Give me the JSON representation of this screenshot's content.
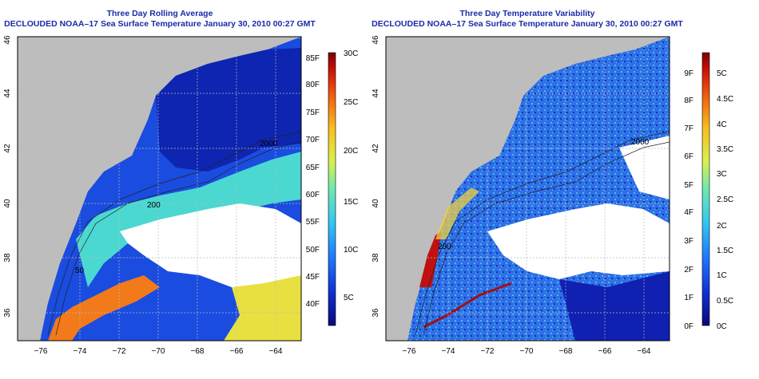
{
  "left_panel": {
    "title": "Three Day Rolling Average",
    "subtitle": "DECLOUDED NOAA–17 Sea Surface Temperature January 30, 2010 00:27 GMT",
    "x_ticks": [
      "−76",
      "−74",
      "−72",
      "−70",
      "−68",
      "−66",
      "−64"
    ],
    "y_ticks": [
      "36",
      "38",
      "40",
      "42",
      "44",
      "46"
    ],
    "contour_labels": [
      "2000",
      "200",
      "50"
    ],
    "colorbar": {
      "fahrenheit": [
        "40F",
        "45F",
        "50F",
        "55F",
        "60F",
        "65F",
        "70F",
        "75F",
        "80F",
        "85F"
      ],
      "celsius": [
        "5C",
        "10C",
        "15C",
        "20C",
        "25C",
        "30C"
      ]
    }
  },
  "right_panel": {
    "title": "Three Day Temperature Variability",
    "subtitle": "DECLOUDED NOAA–17 Sea Surface Temperature January 30, 2010 00:27 GMT",
    "x_ticks": [
      "−76",
      "−74",
      "−72",
      "−70",
      "−68",
      "−66",
      "−64"
    ],
    "y_ticks": [
      "36",
      "38",
      "40",
      "42",
      "44",
      "46"
    ],
    "contour_labels": [
      "2000",
      "200"
    ],
    "colorbar": {
      "fahrenheit": [
        "0F",
        "1F",
        "2F",
        "3F",
        "4F",
        "5F",
        "6F",
        "7F",
        "8F",
        "9F"
      ],
      "celsius": [
        "0C",
        "0.5C",
        "1C",
        "1.5C",
        "2C",
        "2.5C",
        "3C",
        "3.5C",
        "4C",
        "4.5C",
        "5C"
      ]
    }
  },
  "colors": {
    "land": "#bdbdbd",
    "title": "#1b2aa8",
    "grid": "#bbbbbb",
    "sst_scale": [
      "#08087a",
      "#1030d0",
      "#1f78ff",
      "#34c8f0",
      "#6fe8b0",
      "#d8f050",
      "#f8c020",
      "#f06010",
      "#c81008",
      "#7a0000"
    ]
  }
}
